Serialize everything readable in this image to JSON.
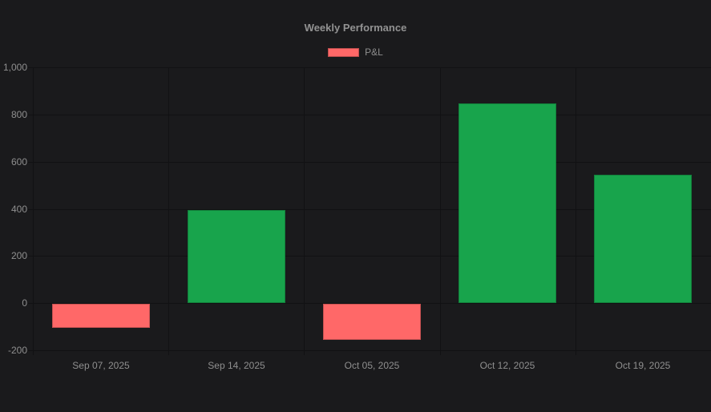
{
  "theme": {
    "background": "#1a1a1c",
    "grid_color": "#111113",
    "text_color": "#8f8f8f",
    "title_color": "#929292"
  },
  "chart_data": {
    "type": "bar",
    "title": "Weekly Performance",
    "categories": [
      "Sep 07, 2025",
      "Sep 14, 2025",
      "Oct 05, 2025",
      "Oct 12, 2025",
      "Oct 19, 2025"
    ],
    "series": [
      {
        "name": "P&L",
        "values": [
          -103,
          395,
          -152,
          848,
          545
        ]
      }
    ],
    "ylim": [
      -200,
      1000
    ],
    "yticks": [
      {
        "value": -200,
        "label": "-200"
      },
      {
        "value": 0,
        "label": "0"
      },
      {
        "value": 200,
        "label": "200"
      },
      {
        "value": 400,
        "label": "400"
      },
      {
        "value": 600,
        "label": "600"
      },
      {
        "value": 800,
        "label": "800"
      },
      {
        "value": 1000,
        "label": "1,000"
      }
    ],
    "positive_color": "#18a44c",
    "negative_color": "#ff6868",
    "grid": true,
    "legend_position": "top"
  }
}
